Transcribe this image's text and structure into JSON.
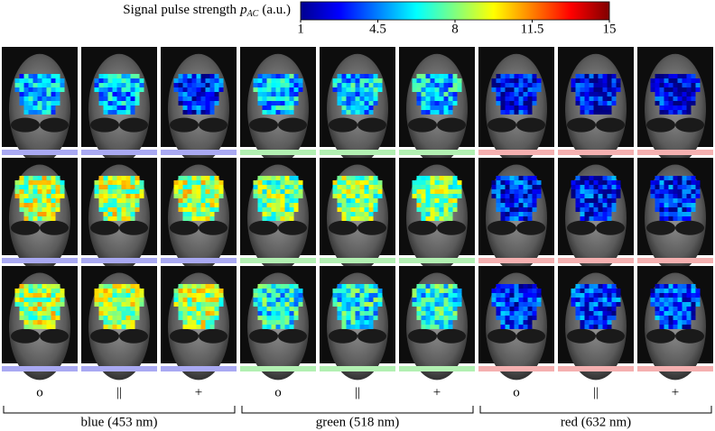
{
  "colorbar": {
    "label": "Signal pulse strength",
    "symbol": "p",
    "subscript": "AC",
    "unit": "(a.u.)",
    "range": [
      1,
      15
    ],
    "ticks": [
      1,
      4.5,
      8,
      11.5,
      15
    ]
  },
  "columns": [
    "o",
    "||",
    "+",
    "o",
    "||",
    "+",
    "o",
    "||",
    "+"
  ],
  "groups": [
    {
      "label": "blue (453 nm)",
      "color": "#a9a9f2"
    },
    {
      "label": "green (518 nm)",
      "color": "#b2f0b2"
    },
    {
      "label": "red (632 nm)",
      "color": "#f5b0b0"
    }
  ]
}
